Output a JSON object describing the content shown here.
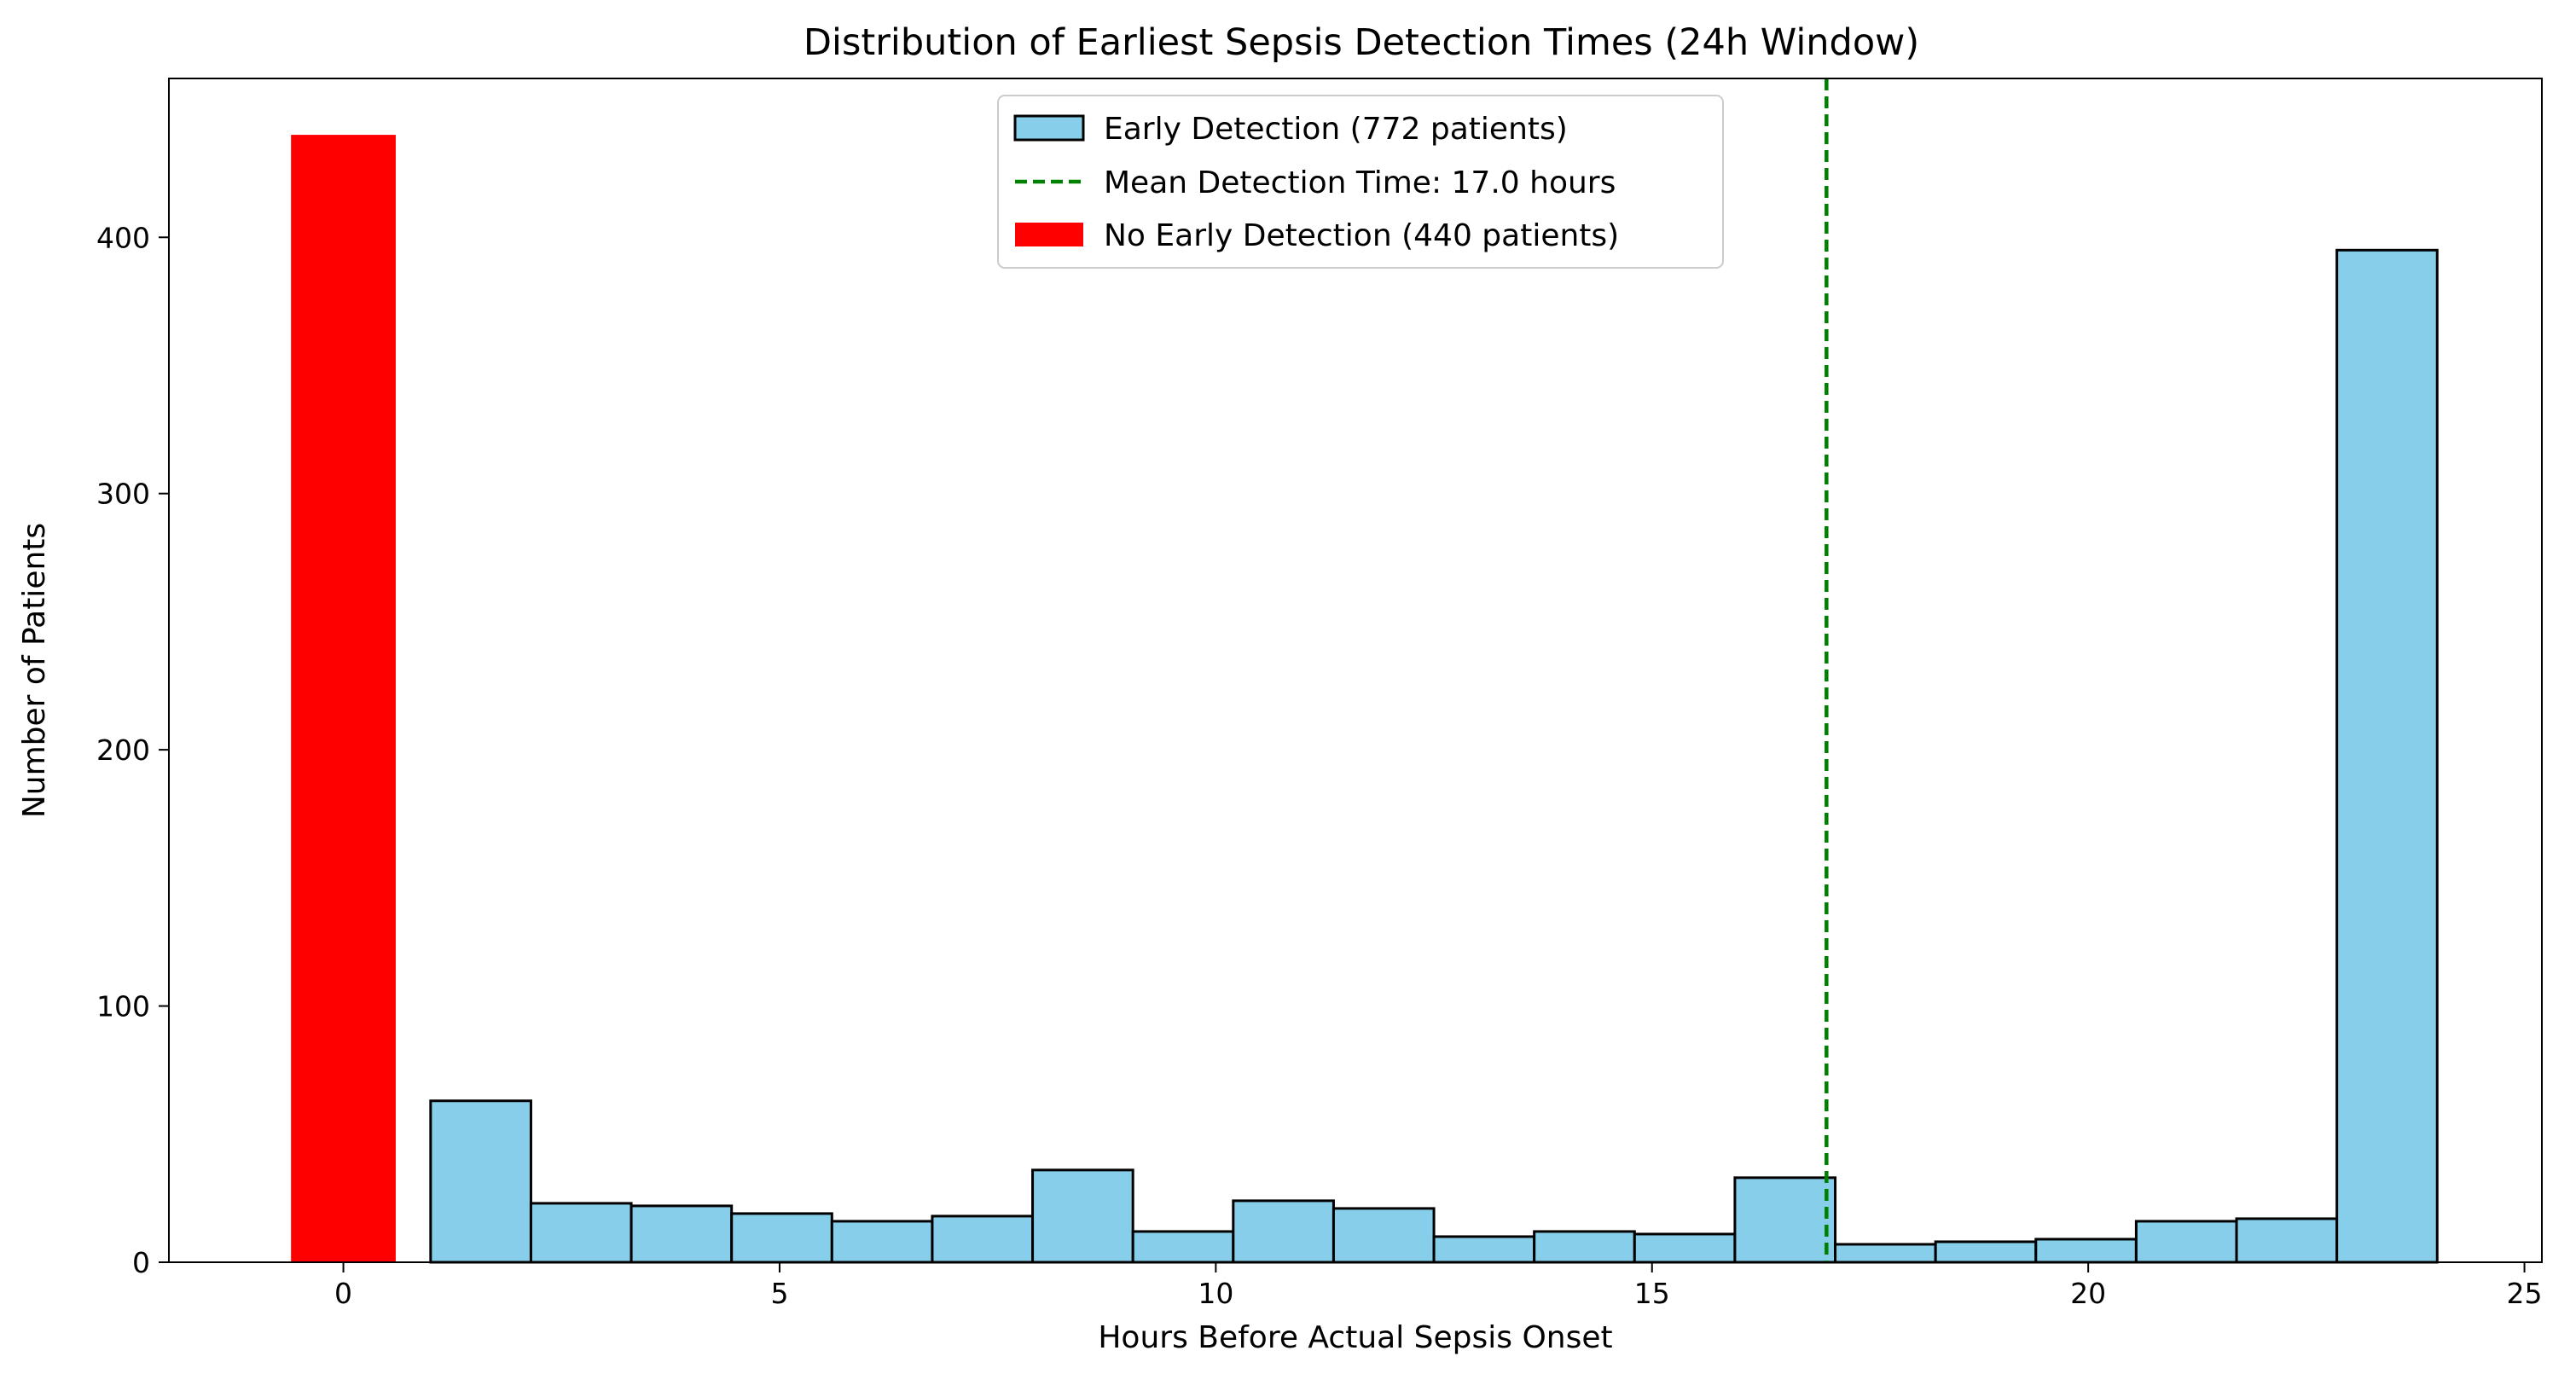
{
  "chart_data": {
    "type": "bar",
    "title": "Distribution of Earliest Sepsis Detection Times (24h Window)",
    "xlabel": "Hours Before Actual Sepsis Onset",
    "ylabel": "Number of Patients",
    "xlim": [
      -2,
      25.2
    ],
    "ylim": [
      0,
      462
    ],
    "x_ticks": [
      0,
      5,
      10,
      15,
      20,
      25
    ],
    "y_ticks": [
      0,
      100,
      200,
      300,
      400
    ],
    "grid": false,
    "legend_position": "top-center",
    "series": [
      {
        "name": "Early Detection (772 patients)",
        "kind": "histogram",
        "color": "#87CEEB",
        "edge_color": "#000000",
        "bin_start": 1,
        "bin_end": 24,
        "values": [
          63,
          23,
          22,
          19,
          16,
          18,
          36,
          12,
          24,
          21,
          10,
          12,
          11,
          33,
          7,
          8,
          9,
          16,
          17,
          395
        ]
      },
      {
        "name": "No Early Detection (440 patients)",
        "kind": "bar",
        "color": "#FF0000",
        "x": 0,
        "width": 1.2,
        "value": 440
      },
      {
        "name": "Mean Detection Time: 17.0 hours",
        "kind": "vline",
        "color": "#008000",
        "style": "dashed",
        "x": 17.0
      }
    ]
  }
}
